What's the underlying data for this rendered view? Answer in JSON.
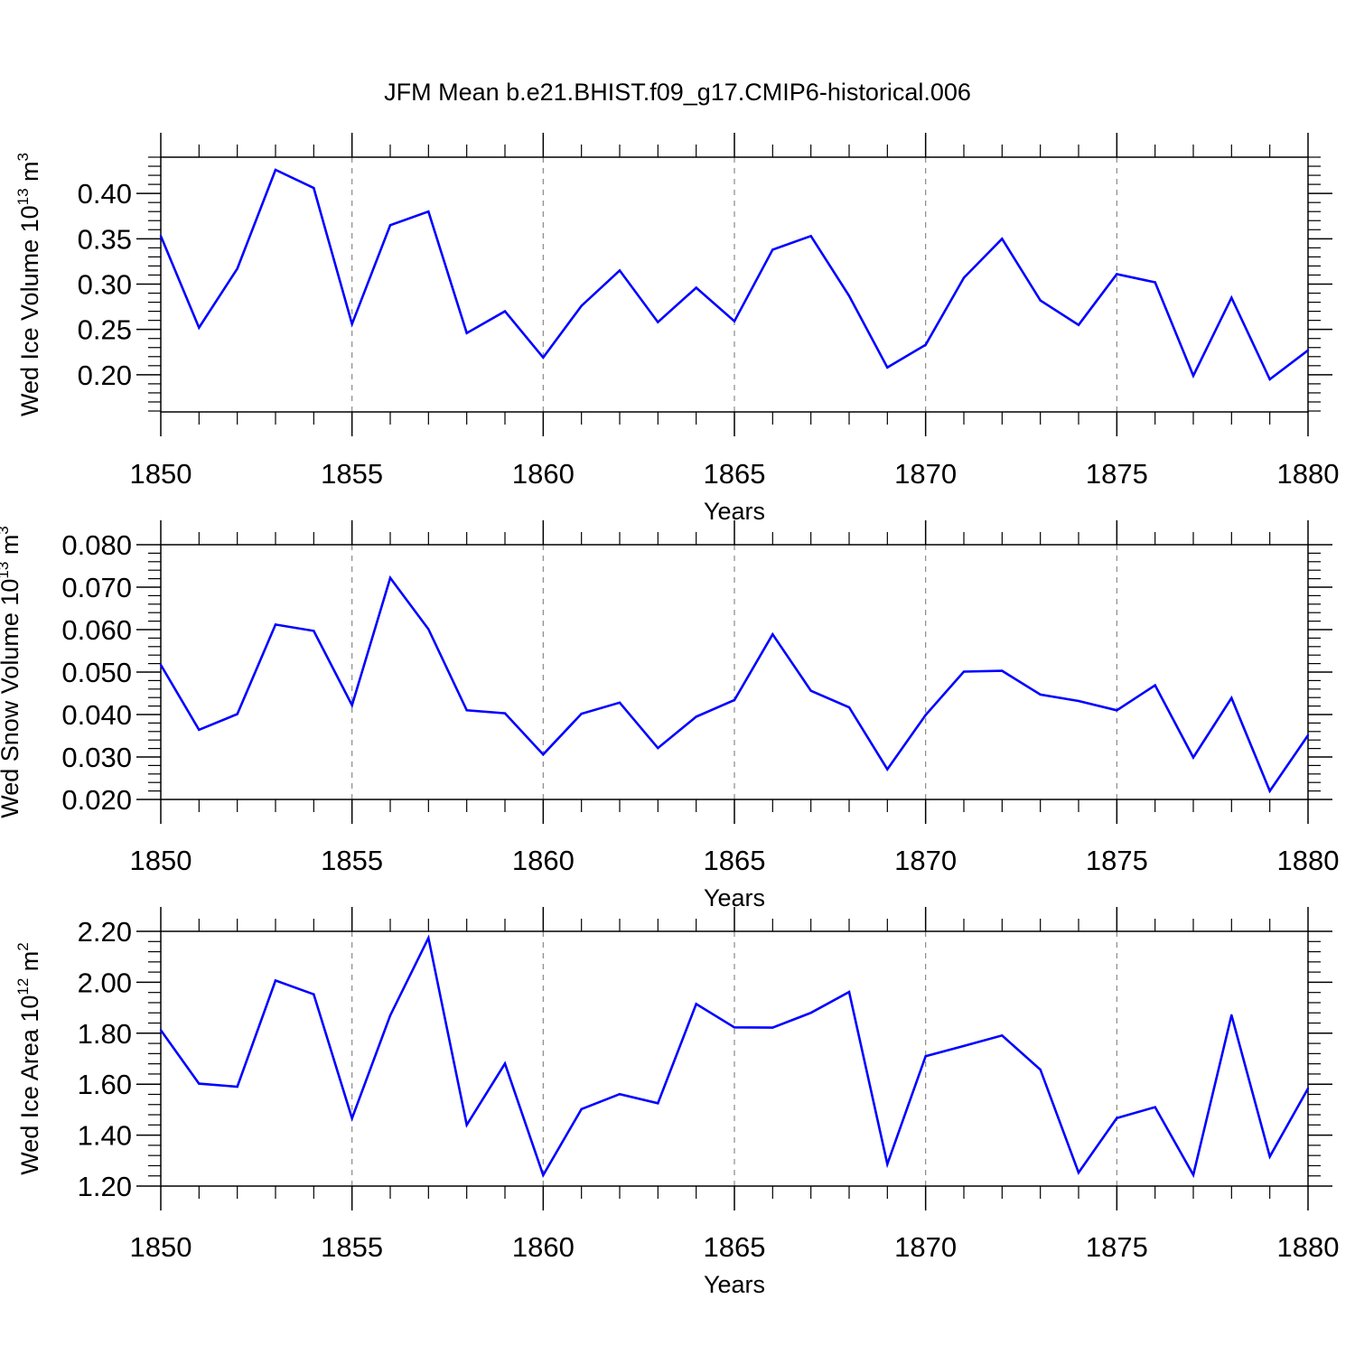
{
  "title": "JFM Mean b.e21.BHIST.f09_g17.CMIP6-historical.006",
  "colors": {
    "line": "#0000ff",
    "axis": "#000000",
    "grid": "#888888"
  },
  "chart_data": [
    {
      "type": "line",
      "ylabel": {
        "text": "Wed Ice Volume 10",
        "exp": "13",
        "unit": " m",
        "unit_exp": "3"
      },
      "xlabel": "Years",
      "xlim": [
        1850,
        1880
      ],
      "ylim": [
        0.159,
        0.44
      ],
      "yticks": [
        0.2,
        0.25,
        0.3,
        0.35,
        0.4
      ],
      "ytick_labels": [
        "0.20",
        "0.25",
        "0.30",
        "0.35",
        "0.40"
      ],
      "xticks": [
        1850,
        1855,
        1860,
        1865,
        1870,
        1875,
        1880
      ],
      "xtick_labels": [
        "1850",
        "1855",
        "1860",
        "1865",
        "1870",
        "1875",
        "1880"
      ],
      "grid": "vertical dashed at labeled years",
      "x": [
        1850,
        1851,
        1852,
        1853,
        1854,
        1855,
        1856,
        1857,
        1858,
        1859,
        1860,
        1861,
        1862,
        1863,
        1864,
        1865,
        1866,
        1867,
        1868,
        1869,
        1870,
        1871,
        1872,
        1873,
        1874,
        1875,
        1876,
        1877,
        1878,
        1879,
        1880
      ],
      "y": [
        0.353,
        0.252,
        0.317,
        0.426,
        0.406,
        0.256,
        0.365,
        0.38,
        0.246,
        0.27,
        0.219,
        0.276,
        0.315,
        0.258,
        0.296,
        0.259,
        0.338,
        0.353,
        0.287,
        0.208,
        0.233,
        0.307,
        0.35,
        0.282,
        0.255,
        0.311,
        0.302,
        0.199,
        0.285,
        0.195,
        0.227
      ]
    },
    {
      "type": "line",
      "ylabel": {
        "text": "Wed Snow Volume 10",
        "exp": "13",
        "unit": " m",
        "unit_exp": "3"
      },
      "xlabel": "Years",
      "xlim": [
        1850,
        1880
      ],
      "ylim": [
        0.02,
        0.08
      ],
      "yticks": [
        0.02,
        0.03,
        0.04,
        0.05,
        0.06,
        0.07,
        0.08
      ],
      "ytick_labels": [
        "0.020",
        "0.030",
        "0.040",
        "0.050",
        "0.060",
        "0.070",
        "0.080"
      ],
      "xticks": [
        1850,
        1855,
        1860,
        1865,
        1870,
        1875,
        1880
      ],
      "xtick_labels": [
        "1850",
        "1855",
        "1860",
        "1865",
        "1870",
        "1875",
        "1880"
      ],
      "grid": "vertical dashed at labeled years",
      "x": [
        1850,
        1851,
        1852,
        1853,
        1854,
        1855,
        1856,
        1857,
        1858,
        1859,
        1860,
        1861,
        1862,
        1863,
        1864,
        1865,
        1866,
        1867,
        1868,
        1869,
        1870,
        1871,
        1872,
        1873,
        1874,
        1875,
        1876,
        1877,
        1878,
        1879,
        1880
      ],
      "y": [
        0.0517,
        0.0364,
        0.0401,
        0.0612,
        0.0597,
        0.0422,
        0.0722,
        0.0601,
        0.041,
        0.0403,
        0.0306,
        0.0402,
        0.0428,
        0.0321,
        0.0395,
        0.0434,
        0.0589,
        0.0456,
        0.0417,
        0.0271,
        0.0399,
        0.0501,
        0.0503,
        0.0447,
        0.0432,
        0.041,
        0.0469,
        0.0299,
        0.0439,
        0.022,
        0.0351
      ]
    },
    {
      "type": "line",
      "ylabel": {
        "text": "Wed Ice Area 10",
        "exp": "12",
        "unit": " m",
        "unit_exp": "2"
      },
      "xlabel": "Years",
      "xlim": [
        1850,
        1880
      ],
      "ylim": [
        1.2,
        2.2
      ],
      "yticks": [
        1.2,
        1.4,
        1.6,
        1.8,
        2.0,
        2.2
      ],
      "ytick_labels": [
        "1.20",
        "1.40",
        "1.60",
        "1.80",
        "2.00",
        "2.20"
      ],
      "xticks": [
        1850,
        1855,
        1860,
        1865,
        1870,
        1875,
        1880
      ],
      "xtick_labels": [
        "1850",
        "1855",
        "1860",
        "1865",
        "1870",
        "1875",
        "1880"
      ],
      "grid": "vertical dashed at labeled years",
      "x": [
        1850,
        1851,
        1852,
        1853,
        1854,
        1855,
        1856,
        1857,
        1858,
        1859,
        1860,
        1861,
        1862,
        1863,
        1864,
        1865,
        1866,
        1867,
        1868,
        1869,
        1870,
        1871,
        1872,
        1873,
        1874,
        1875,
        1876,
        1877,
        1878,
        1879,
        1880
      ],
      "y": [
        1.812,
        1.602,
        1.59,
        2.007,
        1.953,
        1.466,
        1.87,
        2.174,
        1.44,
        1.681,
        1.243,
        1.502,
        1.561,
        1.525,
        1.915,
        1.823,
        1.822,
        1.88,
        1.962,
        1.286,
        1.71,
        1.75,
        1.791,
        1.657,
        1.253,
        1.467,
        1.51,
        1.244,
        1.871,
        1.316,
        1.583
      ]
    }
  ]
}
